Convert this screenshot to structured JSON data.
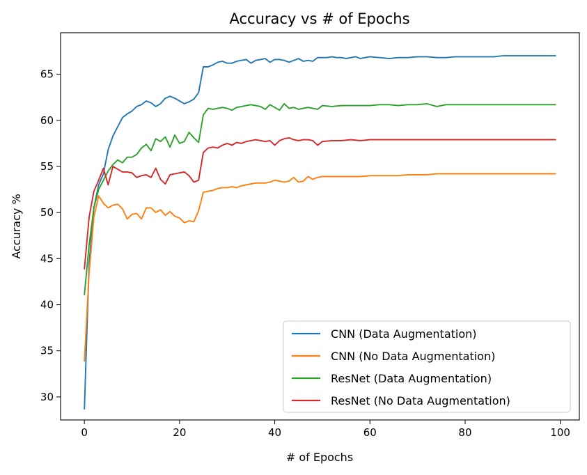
{
  "chart_data": {
    "type": "line",
    "title": "Accuracy vs # of Epochs",
    "xlabel": "# of Epochs",
    "ylabel": "Accuracy %",
    "xlim": [
      -5,
      104
    ],
    "ylim": [
      27.5,
      69.5
    ],
    "xticks": [
      0,
      20,
      40,
      60,
      80,
      100
    ],
    "yticks": [
      30,
      35,
      40,
      45,
      50,
      55,
      60,
      65
    ],
    "grid": false,
    "legend_position": "lower-right",
    "series": [
      {
        "name": "CNN (Data Augmentation)",
        "color": "#1f77b4",
        "x": [
          0,
          1,
          2,
          3,
          4,
          5,
          6,
          7,
          8,
          9,
          10,
          11,
          12,
          13,
          14,
          15,
          16,
          17,
          18,
          19,
          20,
          21,
          22,
          23,
          24,
          25,
          26,
          27,
          28,
          29,
          30,
          31,
          32,
          33,
          34,
          35,
          36,
          37,
          38,
          39,
          40,
          41,
          42,
          43,
          44,
          45,
          46,
          47,
          48,
          49,
          50,
          51,
          52,
          53,
          54,
          55,
          56,
          57,
          58,
          59,
          60,
          62,
          64,
          66,
          68,
          70,
          72,
          74,
          76,
          78,
          80,
          82,
          84,
          86,
          88,
          90,
          92,
          94,
          96,
          98,
          99
        ],
        "y": [
          28.7,
          44.5,
          50.5,
          53.0,
          54.2,
          56.8,
          58.3,
          59.3,
          60.3,
          60.7,
          61.0,
          61.5,
          61.7,
          62.1,
          61.9,
          61.5,
          61.8,
          62.4,
          62.6,
          62.4,
          62.1,
          61.8,
          62.0,
          62.3,
          63.0,
          65.8,
          65.8,
          66.0,
          66.3,
          66.4,
          66.2,
          66.2,
          66.4,
          66.5,
          66.6,
          66.2,
          66.5,
          66.6,
          66.7,
          66.3,
          66.6,
          66.6,
          66.5,
          66.3,
          66.5,
          66.7,
          66.4,
          66.5,
          66.4,
          66.8,
          66.8,
          66.8,
          66.9,
          66.8,
          66.8,
          66.7,
          66.8,
          66.9,
          66.7,
          66.8,
          66.9,
          66.8,
          66.7,
          66.8,
          66.8,
          66.9,
          66.9,
          66.8,
          66.8,
          66.9,
          66.9,
          66.9,
          66.9,
          66.9,
          67.0,
          67.0,
          67.0,
          67.0,
          67.0,
          67.0,
          67.0
        ]
      },
      {
        "name": "CNN (No Data Augmentation)",
        "color": "#ff7f0e",
        "x": [
          0,
          1,
          2,
          3,
          4,
          5,
          6,
          7,
          8,
          9,
          10,
          11,
          12,
          13,
          14,
          15,
          16,
          17,
          18,
          19,
          20,
          21,
          22,
          23,
          24,
          25,
          26,
          27,
          28,
          29,
          30,
          31,
          32,
          33,
          34,
          35,
          36,
          37,
          38,
          39,
          40,
          41,
          42,
          43,
          44,
          45,
          46,
          47,
          48,
          49,
          50,
          52,
          54,
          56,
          58,
          60,
          62,
          64,
          66,
          68,
          70,
          72,
          74,
          76,
          78,
          80,
          82,
          84,
          86,
          88,
          90,
          92,
          94,
          96,
          98,
          99
        ],
        "y": [
          33.9,
          43.5,
          49.5,
          51.8,
          51.0,
          50.5,
          50.8,
          50.9,
          50.4,
          49.3,
          49.8,
          49.9,
          49.3,
          50.5,
          50.5,
          50.0,
          50.3,
          49.7,
          50.1,
          49.6,
          49.4,
          48.9,
          49.1,
          49.0,
          50.2,
          52.2,
          52.3,
          52.4,
          52.6,
          52.7,
          52.7,
          52.8,
          52.7,
          52.9,
          53.0,
          53.1,
          53.2,
          53.2,
          53.2,
          53.3,
          53.5,
          53.4,
          53.3,
          53.4,
          53.8,
          53.3,
          53.4,
          53.9,
          53.6,
          53.8,
          53.9,
          53.9,
          53.9,
          53.9,
          53.9,
          54.0,
          54.0,
          54.0,
          54.0,
          54.1,
          54.1,
          54.1,
          54.2,
          54.2,
          54.2,
          54.2,
          54.2,
          54.2,
          54.2,
          54.2,
          54.2,
          54.2,
          54.2,
          54.2,
          54.2,
          54.2
        ]
      },
      {
        "name": "ResNet (Data Augmentation)",
        "color": "#2ca02c",
        "x": [
          0,
          1,
          2,
          3,
          4,
          5,
          6,
          7,
          8,
          9,
          10,
          11,
          12,
          13,
          14,
          15,
          16,
          17,
          18,
          19,
          20,
          21,
          22,
          23,
          24,
          25,
          26,
          27,
          28,
          29,
          30,
          31,
          32,
          33,
          34,
          35,
          36,
          37,
          38,
          39,
          40,
          41,
          42,
          43,
          44,
          45,
          46,
          47,
          48,
          49,
          50,
          52,
          54,
          56,
          58,
          60,
          62,
          64,
          66,
          68,
          70,
          72,
          74,
          76,
          78,
          80,
          82,
          84,
          86,
          88,
          90,
          92,
          94,
          96,
          98,
          99
        ],
        "y": [
          41.1,
          46.5,
          50.5,
          52.5,
          53.5,
          54.5,
          55.2,
          55.7,
          55.4,
          56.0,
          56.0,
          56.3,
          57.0,
          57.4,
          56.7,
          58.0,
          57.7,
          58.2,
          57.1,
          58.4,
          57.5,
          57.7,
          58.7,
          58.1,
          57.6,
          60.6,
          61.3,
          61.2,
          61.3,
          61.4,
          61.3,
          61.1,
          61.4,
          61.5,
          61.6,
          61.7,
          61.6,
          61.5,
          61.2,
          61.7,
          61.4,
          61.1,
          61.8,
          61.3,
          61.4,
          61.2,
          61.3,
          61.4,
          61.3,
          61.2,
          61.6,
          61.5,
          61.6,
          61.6,
          61.6,
          61.6,
          61.7,
          61.7,
          61.6,
          61.7,
          61.7,
          61.8,
          61.5,
          61.7,
          61.7,
          61.7,
          61.7,
          61.7,
          61.7,
          61.7,
          61.7,
          61.7,
          61.7,
          61.7,
          61.7,
          61.7
        ]
      },
      {
        "name": "ResNet (No Data Augmentation)",
        "color": "#d62728",
        "x": [
          0,
          1,
          2,
          3,
          4,
          5,
          6,
          7,
          8,
          9,
          10,
          11,
          12,
          13,
          14,
          15,
          16,
          17,
          18,
          19,
          20,
          21,
          22,
          23,
          24,
          25,
          26,
          27,
          28,
          29,
          30,
          31,
          32,
          33,
          34,
          35,
          36,
          37,
          38,
          39,
          40,
          41,
          42,
          43,
          44,
          45,
          46,
          47,
          48,
          49,
          50,
          52,
          54,
          56,
          58,
          60,
          62,
          64,
          66,
          68,
          70,
          72,
          74,
          76,
          78,
          80,
          82,
          84,
          86,
          88,
          90,
          92,
          94,
          96,
          98,
          99
        ],
        "y": [
          43.9,
          49.5,
          52.3,
          53.5,
          54.8,
          53.0,
          55.0,
          54.7,
          54.4,
          54.4,
          54.3,
          53.8,
          54.0,
          54.1,
          53.8,
          54.8,
          53.6,
          53.1,
          54.1,
          54.2,
          54.3,
          54.4,
          54.0,
          53.3,
          53.5,
          56.5,
          57.0,
          57.1,
          57.0,
          57.3,
          57.5,
          57.3,
          57.6,
          57.5,
          57.7,
          57.8,
          57.9,
          57.8,
          57.7,
          57.8,
          57.3,
          57.8,
          58.0,
          58.1,
          57.9,
          57.8,
          57.9,
          57.9,
          57.8,
          57.3,
          57.7,
          57.8,
          57.8,
          57.9,
          57.8,
          57.9,
          57.9,
          57.9,
          57.9,
          57.9,
          57.9,
          57.9,
          57.9,
          57.9,
          57.9,
          57.9,
          57.9,
          57.9,
          57.9,
          57.9,
          57.9,
          57.9,
          57.9,
          57.9,
          57.9,
          57.9
        ]
      }
    ]
  }
}
